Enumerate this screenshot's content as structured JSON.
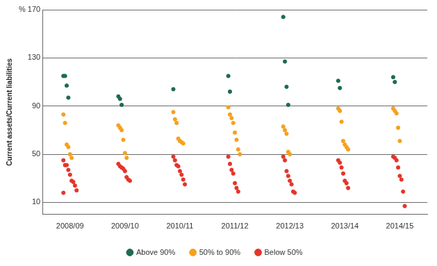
{
  "chart_data": {
    "type": "scatter",
    "y_label": "Current assets/Current liabilities",
    "categories": [
      "2008/09",
      "2009/10",
      "2010/11",
      "2011/12",
      "2012/13",
      "2013/14",
      "2014/15"
    ],
    "series": [
      {
        "name": "Above 90%",
        "color": "#1e6b50",
        "values": [
          [
            115,
            115,
            107,
            97
          ],
          [
            98,
            96,
            91
          ],
          [
            104
          ],
          [
            115,
            102
          ],
          [
            164,
            127,
            106,
            91
          ],
          [
            111,
            105
          ],
          [
            114,
            110
          ]
        ]
      },
      {
        "name": "50% to 90%",
        "color": "#f6a11c",
        "values": [
          [
            83,
            76,
            58,
            56,
            50,
            47
          ],
          [
            74,
            72,
            70,
            62,
            51,
            47
          ],
          [
            85,
            79,
            76,
            63,
            61,
            60,
            59
          ],
          [
            89,
            83,
            80,
            76,
            68,
            62,
            54,
            50
          ],
          [
            73,
            70,
            67,
            52,
            50
          ],
          [
            88,
            86,
            77,
            61,
            58,
            56,
            54
          ],
          [
            88,
            86,
            84,
            72,
            61
          ]
        ]
      },
      {
        "name": "Below 50%",
        "color": "#e5352b",
        "values": [
          [
            45,
            41,
            41,
            37,
            33,
            28,
            27,
            24,
            20,
            18
          ],
          [
            42,
            40,
            39,
            38,
            36,
            31,
            29,
            28
          ],
          [
            48,
            45,
            41,
            40,
            36,
            33,
            29,
            25
          ],
          [
            48,
            42,
            37,
            34,
            26,
            22,
            19
          ],
          [
            48,
            45,
            36,
            32,
            28,
            25,
            19,
            18
          ],
          [
            45,
            43,
            39,
            34,
            28,
            26,
            22
          ],
          [
            48,
            47,
            45,
            39,
            32,
            29,
            19,
            7
          ]
        ]
      }
    ],
    "ylim": [
      0,
      170
    ],
    "yticks": [
      10,
      50,
      90,
      130,
      {
        "value": 170,
        "label": "% 170"
      }
    ],
    "grid": true,
    "legend": "bottom",
    "marker": "circle"
  }
}
